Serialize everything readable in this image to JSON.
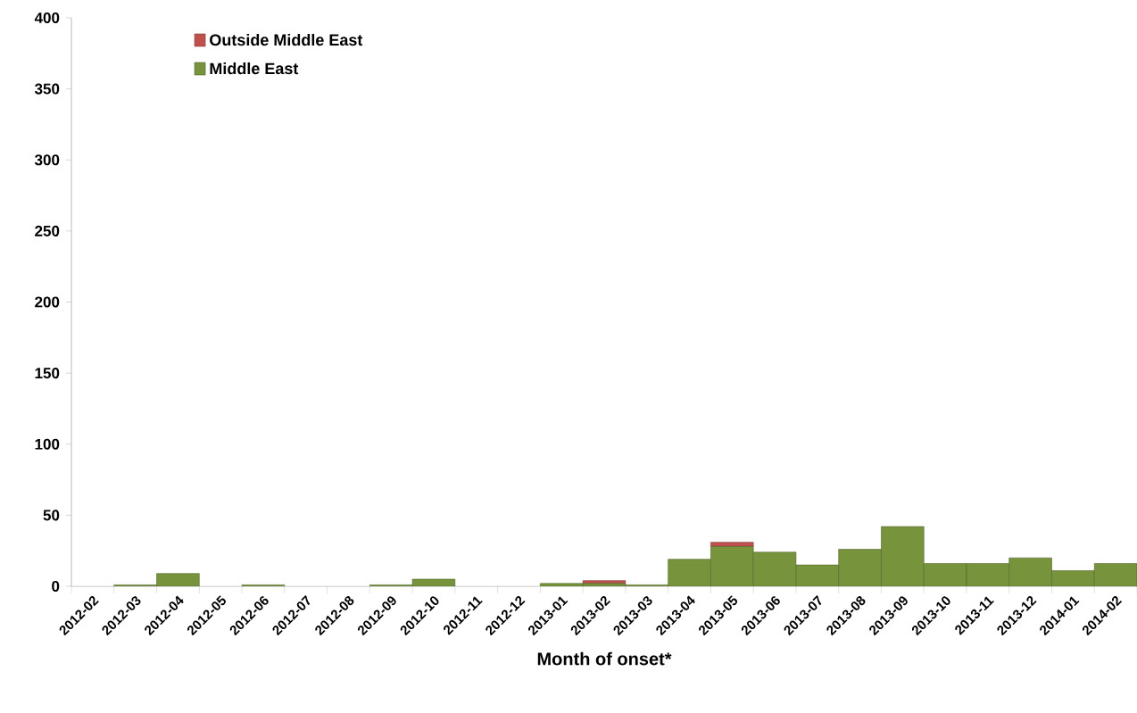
{
  "chart_data": {
    "type": "bar",
    "stacked": true,
    "xlabel": "Month of onset*",
    "categories": [
      "2012-02",
      "2012-03",
      "2012-04",
      "2012-05",
      "2012-06",
      "2012-07",
      "2012-08",
      "2012-09",
      "2012-10",
      "2012-11",
      "2012-12",
      "2013-01",
      "2013-02",
      "2013-03",
      "2013-04",
      "2013-05",
      "2013-06",
      "2013-07",
      "2013-08",
      "2013-09",
      "2013-10",
      "2013-11",
      "2013-12",
      "2014-01",
      "2014-02"
    ],
    "series": [
      {
        "name": "Middle East",
        "color": "#77933c",
        "values": [
          0,
          1,
          9,
          0,
          1,
          0,
          0,
          1,
          5,
          0,
          0,
          2,
          2,
          1,
          19,
          28,
          24,
          15,
          26,
          42,
          16,
          16,
          20,
          11,
          16
        ]
      },
      {
        "name": "Outside Middle East",
        "color": "#c0504d",
        "values": [
          0,
          0,
          0,
          0,
          0,
          0,
          0,
          0,
          0,
          0,
          0,
          0,
          2,
          0,
          0,
          3,
          0,
          0,
          0,
          0,
          0,
          0,
          0,
          0,
          0
        ]
      }
    ],
    "ylim": [
      0,
      400
    ],
    "yticks": [
      0,
      50,
      100,
      150,
      200,
      250,
      300,
      350,
      400
    ],
    "grid": false,
    "legend": "top left"
  }
}
